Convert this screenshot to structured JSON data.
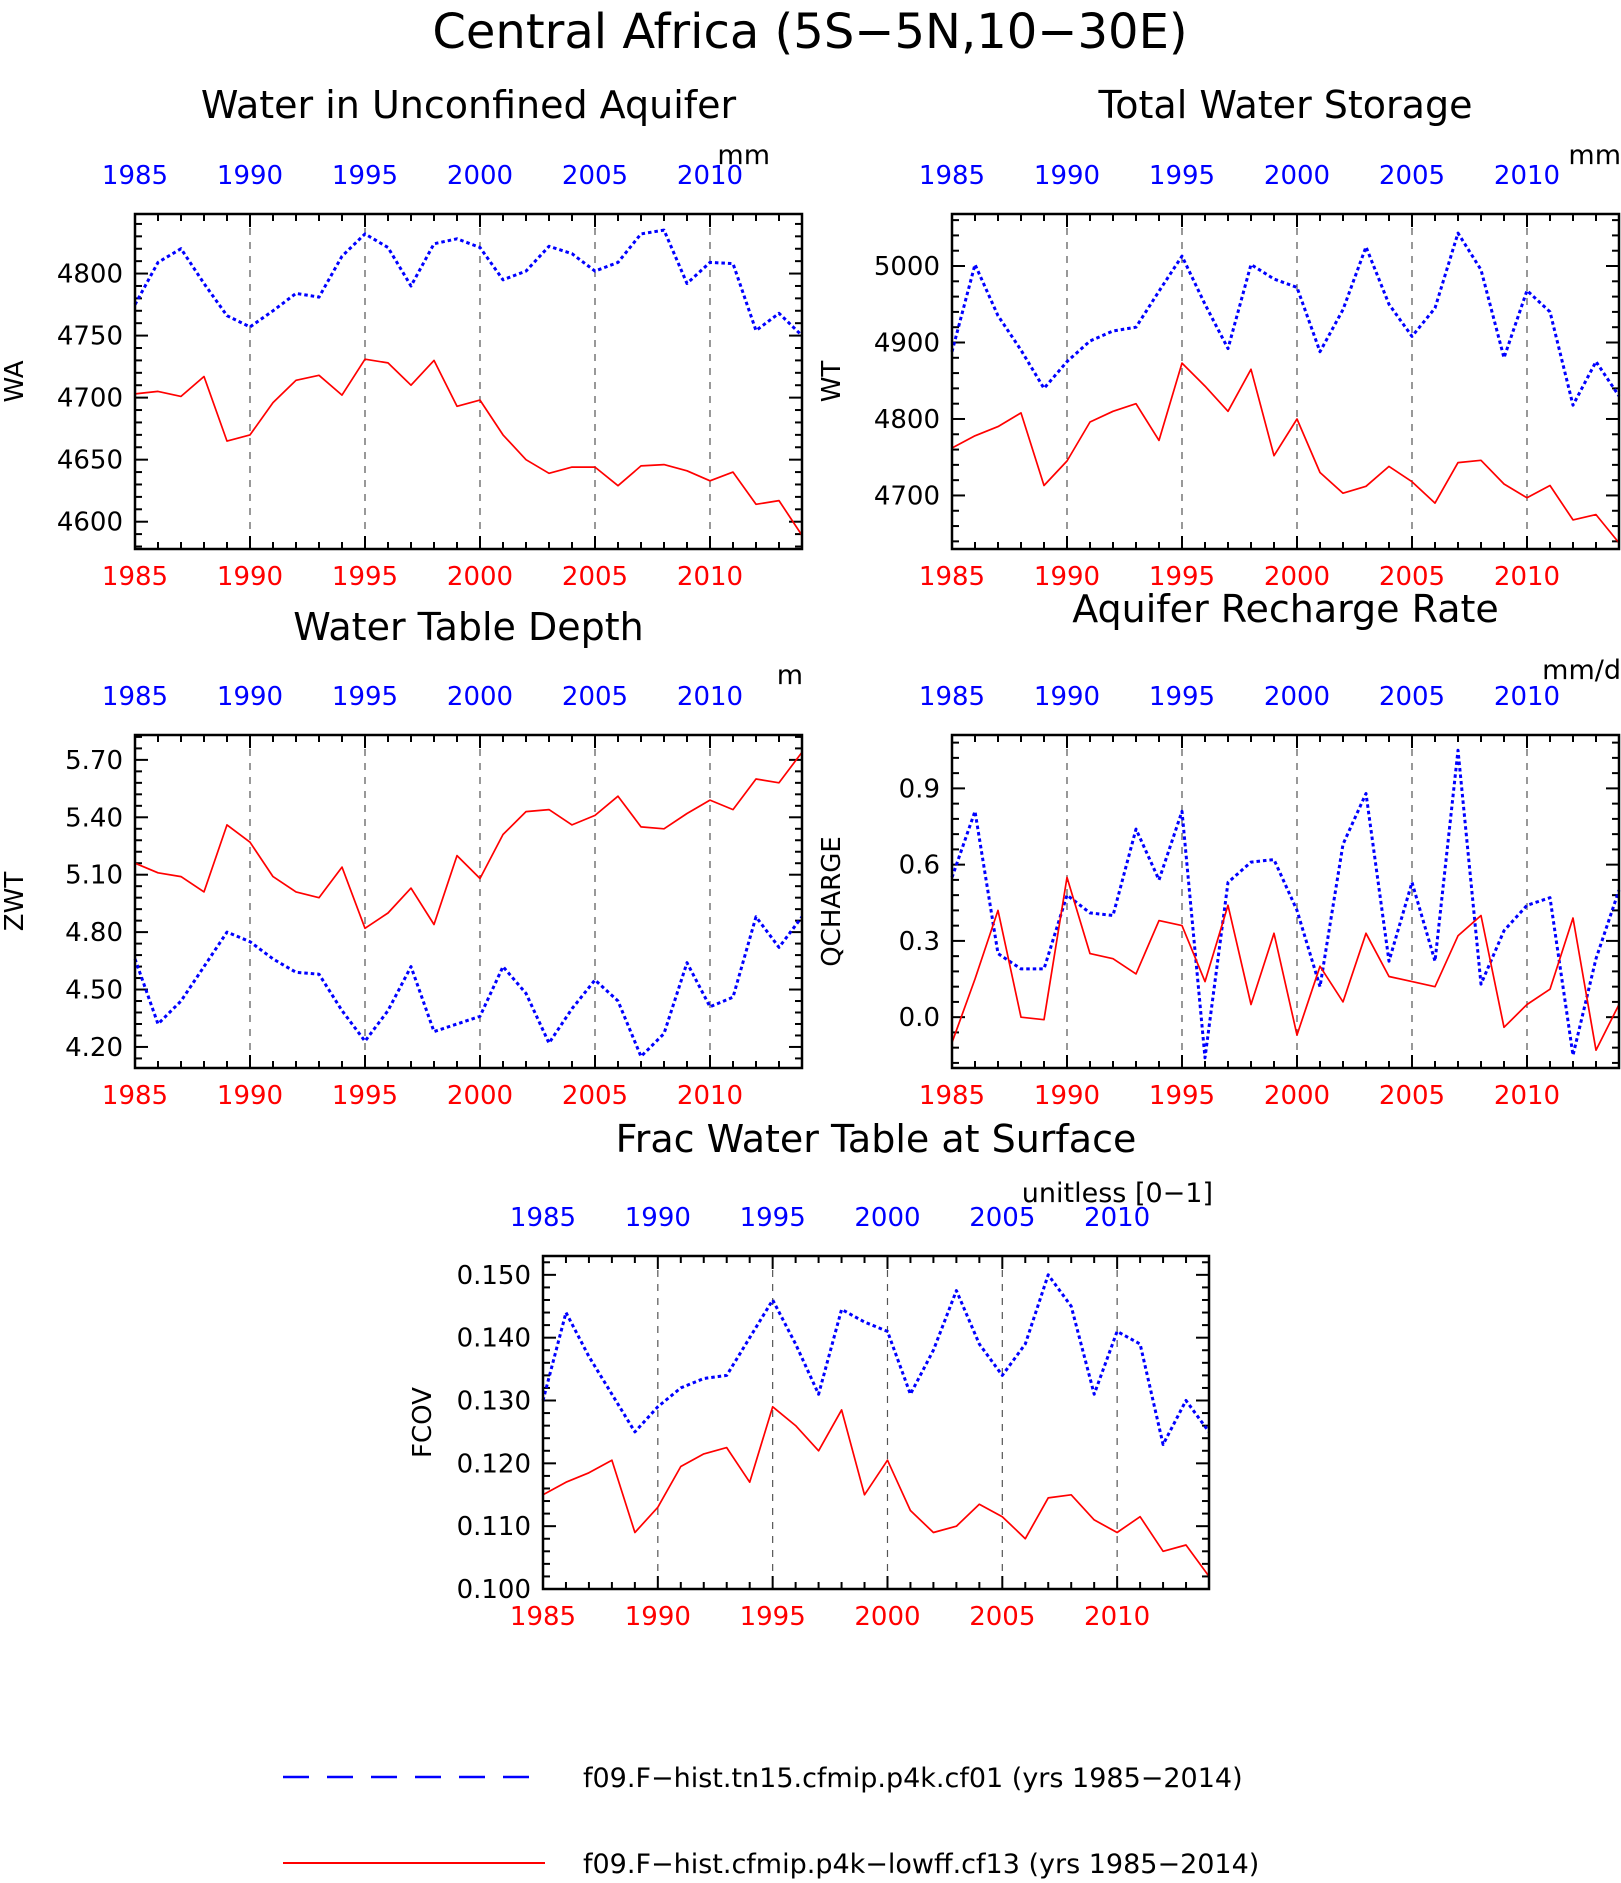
{
  "title": "Central Africa (5S−5N,10−30E)",
  "colors": {
    "hist": "#0000ff",
    "lowff": "#ff0000",
    "grid": "#555555"
  },
  "legend": {
    "entries": [
      {
        "label": "f09.F−hist.tn15.cfmip.p4k.cf01 (yrs 1985−2014)",
        "color": "#0000ff",
        "style": "dashed"
      },
      {
        "label": "f09.F−hist.cfmip.p4k−lowff.cf13 (yrs 1985−2014)",
        "color": "#ff0000",
        "style": "solid"
      }
    ]
  },
  "chart_data": [
    {
      "id": "wa",
      "type": "line",
      "title": "Water in Unconfined Aquifer",
      "unit": "mm",
      "ylabel": "WA",
      "xlim": [
        1985,
        2014
      ],
      "ylim": [
        4578,
        4848
      ],
      "x_ticks": [
        1985,
        1990,
        1995,
        2000,
        2005,
        2010
      ],
      "x_tick_labels": [
        "1985",
        "1990",
        "1995",
        "2000",
        "2005",
        "2010"
      ],
      "y_ticks": [
        4600,
        4650,
        4700,
        4750,
        4800
      ],
      "y_tick_labels": [
        "4600",
        "4650",
        "4700",
        "4750",
        "4800"
      ],
      "grid_x": [
        1990,
        1995,
        2000,
        2005,
        2010
      ],
      "series": [
        {
          "color": "#0000ff",
          "style": "dotted",
          "values": [
            4775,
            4809,
            4820,
            4792,
            4766,
            4757,
            4770,
            4784,
            4781,
            4814,
            4832,
            4821,
            4790,
            4824,
            4828,
            4821,
            4795,
            4802,
            4822,
            4816,
            4802,
            4809,
            4832,
            4835,
            4792,
            4809,
            4808,
            4754,
            4768,
            4750
          ]
        },
        {
          "color": "#ff0000",
          "style": "solid",
          "values": [
            4703,
            4705,
            4701,
            4717,
            4665,
            4670,
            4696,
            4714,
            4718,
            4702,
            4731,
            4728,
            4710,
            4730,
            4693,
            4698,
            4670,
            4650,
            4639,
            4644,
            4644,
            4629,
            4645,
            4646,
            4641,
            4633,
            4640,
            4614,
            4617,
            4589
          ]
        }
      ]
    },
    {
      "id": "wt",
      "type": "line",
      "title": "Total Water Storage",
      "unit": "mm",
      "ylabel": "WT",
      "xlim": [
        1985,
        2014
      ],
      "ylim": [
        4630,
        5068
      ],
      "x_ticks": [
        1985,
        1990,
        1995,
        2000,
        2005,
        2010
      ],
      "x_tick_labels": [
        "1985",
        "1990",
        "1995",
        "2000",
        "2005",
        "2010"
      ],
      "y_ticks": [
        4700,
        4800,
        4900,
        5000
      ],
      "y_tick_labels": [
        "4700",
        "4800",
        "4900",
        "5000"
      ],
      "grid_x": [
        1990,
        1995,
        2000,
        2005,
        2010
      ],
      "series": [
        {
          "color": "#0000ff",
          "style": "dotted",
          "values": [
            4888,
            5002,
            4935,
            4890,
            4840,
            4875,
            4902,
            4915,
            4920,
            4967,
            5013,
            4950,
            4892,
            5002,
            4983,
            4972,
            4888,
            4943,
            5025,
            4950,
            4908,
            4945,
            5043,
            4995,
            4880,
            4968,
            4940,
            4818,
            4875,
            4830
          ]
        },
        {
          "color": "#ff0000",
          "style": "solid",
          "values": [
            4762,
            4778,
            4790,
            4808,
            4713,
            4745,
            4796,
            4810,
            4820,
            4772,
            4873,
            4843,
            4810,
            4865,
            4752,
            4800,
            4730,
            4703,
            4712,
            4738,
            4718,
            4690,
            4743,
            4746,
            4715,
            4697,
            4713,
            4668,
            4675,
            4638
          ]
        }
      ]
    },
    {
      "id": "zwt",
      "type": "line",
      "title": "Water Table Depth",
      "unit": "m",
      "ylabel": "ZWT",
      "xlim": [
        1985,
        2014
      ],
      "ylim": [
        4.09,
        5.83
      ],
      "x_ticks": [
        1985,
        1990,
        1995,
        2000,
        2005,
        2010
      ],
      "x_tick_labels": [
        "1985",
        "1990",
        "1995",
        "2000",
        "2005",
        "2010"
      ],
      "y_ticks": [
        4.2,
        4.5,
        4.8,
        5.1,
        5.4,
        5.7
      ],
      "y_tick_labels": [
        "4.20",
        "4.50",
        "4.80",
        "5.10",
        "5.40",
        "5.70"
      ],
      "grid_x": [
        1990,
        1995,
        2000,
        2005,
        2010
      ],
      "series": [
        {
          "color": "#0000ff",
          "style": "dotted",
          "values": [
            4.66,
            4.32,
            4.44,
            4.62,
            4.8,
            4.75,
            4.66,
            4.59,
            4.58,
            4.39,
            4.23,
            4.39,
            4.62,
            4.28,
            4.32,
            4.36,
            4.62,
            4.48,
            4.22,
            4.4,
            4.55,
            4.44,
            4.15,
            4.27,
            4.64,
            4.41,
            4.46,
            4.88,
            4.72,
            4.88
          ]
        },
        {
          "color": "#ff0000",
          "style": "solid",
          "values": [
            5.16,
            5.11,
            5.09,
            5.01,
            5.36,
            5.27,
            5.09,
            5.01,
            4.98,
            5.14,
            4.82,
            4.9,
            5.03,
            4.84,
            5.2,
            5.08,
            5.31,
            5.43,
            5.44,
            5.36,
            5.41,
            5.51,
            5.35,
            5.34,
            5.42,
            5.49,
            5.44,
            5.6,
            5.58,
            5.74
          ]
        }
      ]
    },
    {
      "id": "qcharge",
      "type": "line",
      "title": "Aquifer Recharge Rate",
      "unit": "mm/d",
      "ylabel": "QCHARGE",
      "xlim": [
        1985,
        2014
      ],
      "ylim": [
        -0.2,
        1.11
      ],
      "x_ticks": [
        1985,
        1990,
        1995,
        2000,
        2005,
        2010
      ],
      "x_tick_labels": [
        "1985",
        "1990",
        "1995",
        "2000",
        "2005",
        "2010"
      ],
      "y_ticks": [
        0.0,
        0.3,
        0.6,
        0.9
      ],
      "y_tick_labels": [
        "0.0",
        "0.3",
        "0.6",
        "0.9"
      ],
      "grid_x": [
        1990,
        1995,
        2000,
        2005,
        2010
      ],
      "series": [
        {
          "color": "#0000ff",
          "style": "dotted",
          "values": [
            0.55,
            0.81,
            0.25,
            0.19,
            0.19,
            0.48,
            0.41,
            0.4,
            0.74,
            0.54,
            0.81,
            -0.16,
            0.53,
            0.61,
            0.62,
            0.42,
            0.12,
            0.68,
            0.88,
            0.22,
            0.53,
            0.22,
            1.05,
            0.13,
            0.34,
            0.44,
            0.47,
            -0.15,
            0.23,
            0.5
          ]
        },
        {
          "color": "#ff0000",
          "style": "solid",
          "values": [
            -0.1,
            0.15,
            0.42,
            0.0,
            -0.01,
            0.55,
            0.25,
            0.23,
            0.17,
            0.38,
            0.36,
            0.14,
            0.44,
            0.05,
            0.33,
            -0.07,
            0.2,
            0.06,
            0.33,
            0.16,
            0.14,
            0.12,
            0.32,
            0.4,
            -0.04,
            0.05,
            0.11,
            0.39,
            -0.13,
            0.05
          ]
        }
      ]
    },
    {
      "id": "fcov",
      "type": "line",
      "title": "Frac Water Table at Surface",
      "unit": "unitless [0−1]",
      "ylabel": "FCOV",
      "xlim": [
        1985,
        2014
      ],
      "ylim": [
        0.1,
        0.153
      ],
      "x_ticks": [
        1985,
        1990,
        1995,
        2000,
        2005,
        2010
      ],
      "x_tick_labels": [
        "1985",
        "1990",
        "1995",
        "2000",
        "2005",
        "2010"
      ],
      "y_ticks": [
        0.1,
        0.11,
        0.12,
        0.13,
        0.14,
        0.15
      ],
      "y_tick_labels": [
        "0.100",
        "0.110",
        "0.120",
        "0.130",
        "0.140",
        "0.150"
      ],
      "grid_x": [
        1990,
        1995,
        2000,
        2005,
        2010
      ],
      "series": [
        {
          "color": "#0000ff",
          "style": "dotted",
          "values": [
            0.13,
            0.144,
            0.137,
            0.131,
            0.125,
            0.129,
            0.132,
            0.1335,
            0.134,
            0.14,
            0.146,
            0.139,
            0.131,
            0.1445,
            0.1425,
            0.141,
            0.131,
            0.138,
            0.1475,
            0.139,
            0.134,
            0.139,
            0.15,
            0.145,
            0.131,
            0.141,
            0.139,
            0.123,
            0.13,
            0.125
          ]
        },
        {
          "color": "#ff0000",
          "style": "solid",
          "values": [
            0.115,
            0.117,
            0.1185,
            0.1205,
            0.109,
            0.113,
            0.1195,
            0.1215,
            0.1225,
            0.117,
            0.129,
            0.126,
            0.122,
            0.1285,
            0.115,
            0.1205,
            0.1125,
            0.109,
            0.11,
            0.1135,
            0.1115,
            0.108,
            0.1145,
            0.115,
            0.111,
            0.109,
            0.1115,
            0.106,
            0.107,
            0.102
          ]
        }
      ]
    }
  ]
}
